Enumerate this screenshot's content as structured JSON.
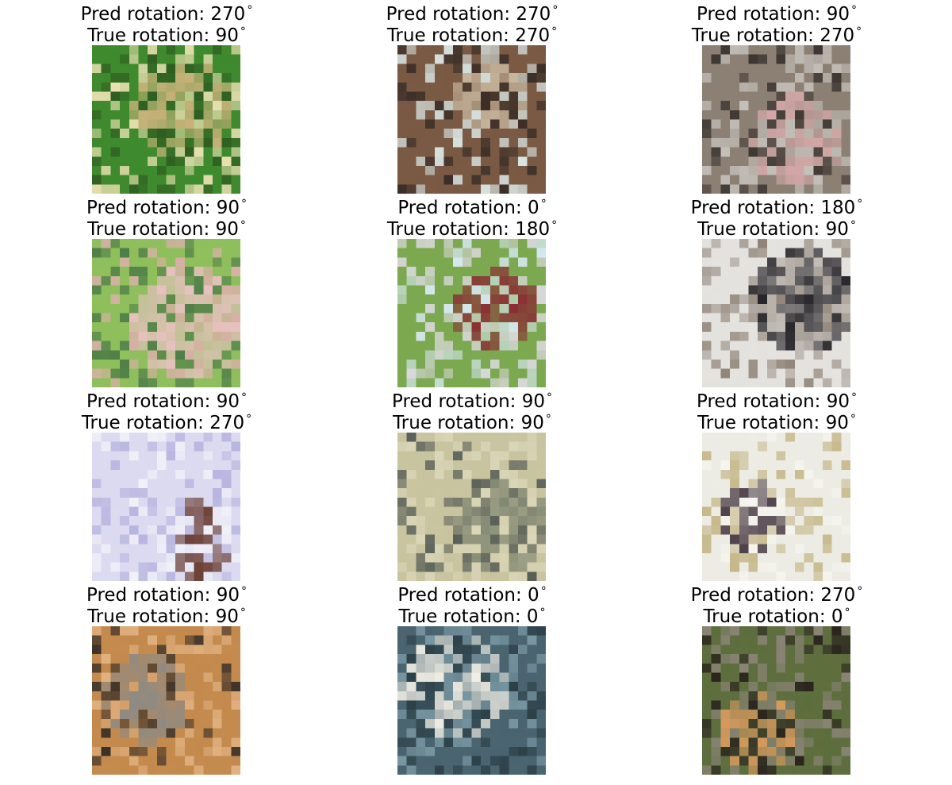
{
  "grid": {
    "rows": 4,
    "cols": 3,
    "pred_prefix": "Pred rotation: ",
    "true_prefix": "True rotation: ",
    "unit": "°"
  },
  "cells": [
    {
      "pred": "270",
      "true": "90",
      "subject": "frog-on-leaves",
      "palette": [
        "#3f8a2e",
        "#c8b27a",
        "#e8e0b0",
        "#2f5e22"
      ]
    },
    {
      "pred": "270",
      "true": "270",
      "subject": "brown-object-with-label",
      "palette": [
        "#7a5a44",
        "#c9b8a0",
        "#d8e4e2",
        "#3c2e28"
      ]
    },
    {
      "pred": "90",
      "true": "270",
      "subject": "gray-animal-on-pink",
      "palette": [
        "#8c8074",
        "#d4a8a8",
        "#c6c2bc",
        "#3e3632"
      ]
    },
    {
      "pred": "90",
      "true": "90",
      "subject": "green-frog-on-pink",
      "palette": [
        "#8fbf5c",
        "#e7c1c0",
        "#4e7d48",
        "#d8b0a6"
      ]
    },
    {
      "pred": "0",
      "true": "180",
      "subject": "vehicle-plaid",
      "palette": [
        "#7ca850",
        "#8a2e34",
        "#d8d8da",
        "#d6e8f0"
      ]
    },
    {
      "pred": "180",
      "true": "90",
      "subject": "black-white-dog",
      "palette": [
        "#e4e2de",
        "#28262a",
        "#908478",
        "#a8a098"
      ]
    },
    {
      "pred": "90",
      "true": "270",
      "subject": "brown-deer-snow",
      "palette": [
        "#dcdaf0",
        "#6a3e34",
        "#b8b4e0",
        "#f0f0f8"
      ]
    },
    {
      "pred": "90",
      "true": "90",
      "subject": "camouflaged-frog",
      "palette": [
        "#c9c4a0",
        "#7d8470",
        "#dad6b8",
        "#575d56"
      ]
    },
    {
      "pred": "90",
      "true": "90",
      "subject": "truck-bright",
      "palette": [
        "#ecebe4",
        "#4c3e48",
        "#c6b88a",
        "#f6f4ee"
      ]
    },
    {
      "pred": "90",
      "true": "90",
      "subject": "brown-frog-gray",
      "palette": [
        "#c48a4e",
        "#8c8a86",
        "#e0b080",
        "#3a3028"
      ]
    },
    {
      "pred": "0",
      "true": "0",
      "subject": "white-boat-water",
      "palette": [
        "#4a6470",
        "#f0ede4",
        "#7a98a4",
        "#2c4048"
      ]
    },
    {
      "pred": "270",
      "true": "0",
      "subject": "orange-frog-grass",
      "palette": [
        "#5e6e3e",
        "#d69a5e",
        "#8a8476",
        "#2a241e"
      ]
    }
  ]
}
